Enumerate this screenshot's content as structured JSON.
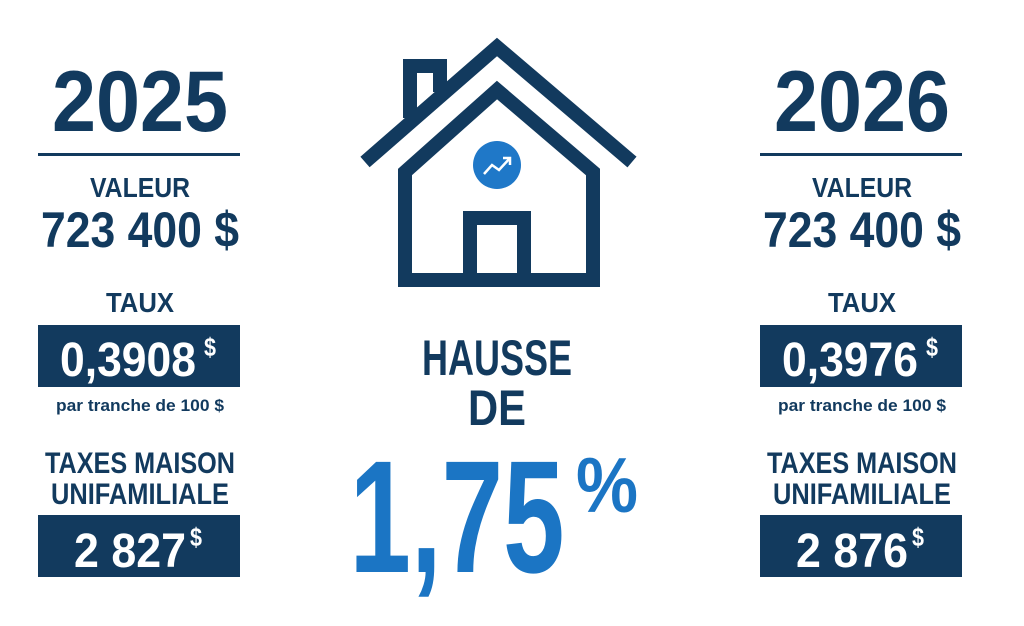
{
  "columns": [
    {
      "year": "2025",
      "value_label": "VALEUR",
      "value": "723 400 $",
      "rate_label": "TAUX",
      "rate": "0,3908",
      "rate_unit": "$",
      "rate_note": "par tranche de 100 $",
      "taxes_label": [
        "TAXES MAISON",
        "UNIFAMILIALE"
      ],
      "taxes": "2 827",
      "taxes_unit": "$"
    },
    {
      "year": "2026",
      "value_label": "VALEUR",
      "value": "723 400 $",
      "rate_label": "TAUX",
      "rate": "0,3976",
      "rate_unit": "$",
      "rate_note": "par tranche de 100 $",
      "taxes_label": [
        "TAXES MAISON",
        "UNIFAMILIALE"
      ],
      "taxes": "2 876",
      "taxes_unit": "$"
    }
  ],
  "center": {
    "line1": "HAUSSE",
    "line2": "DE",
    "percent": "1,75",
    "percent_sign": "%"
  }
}
